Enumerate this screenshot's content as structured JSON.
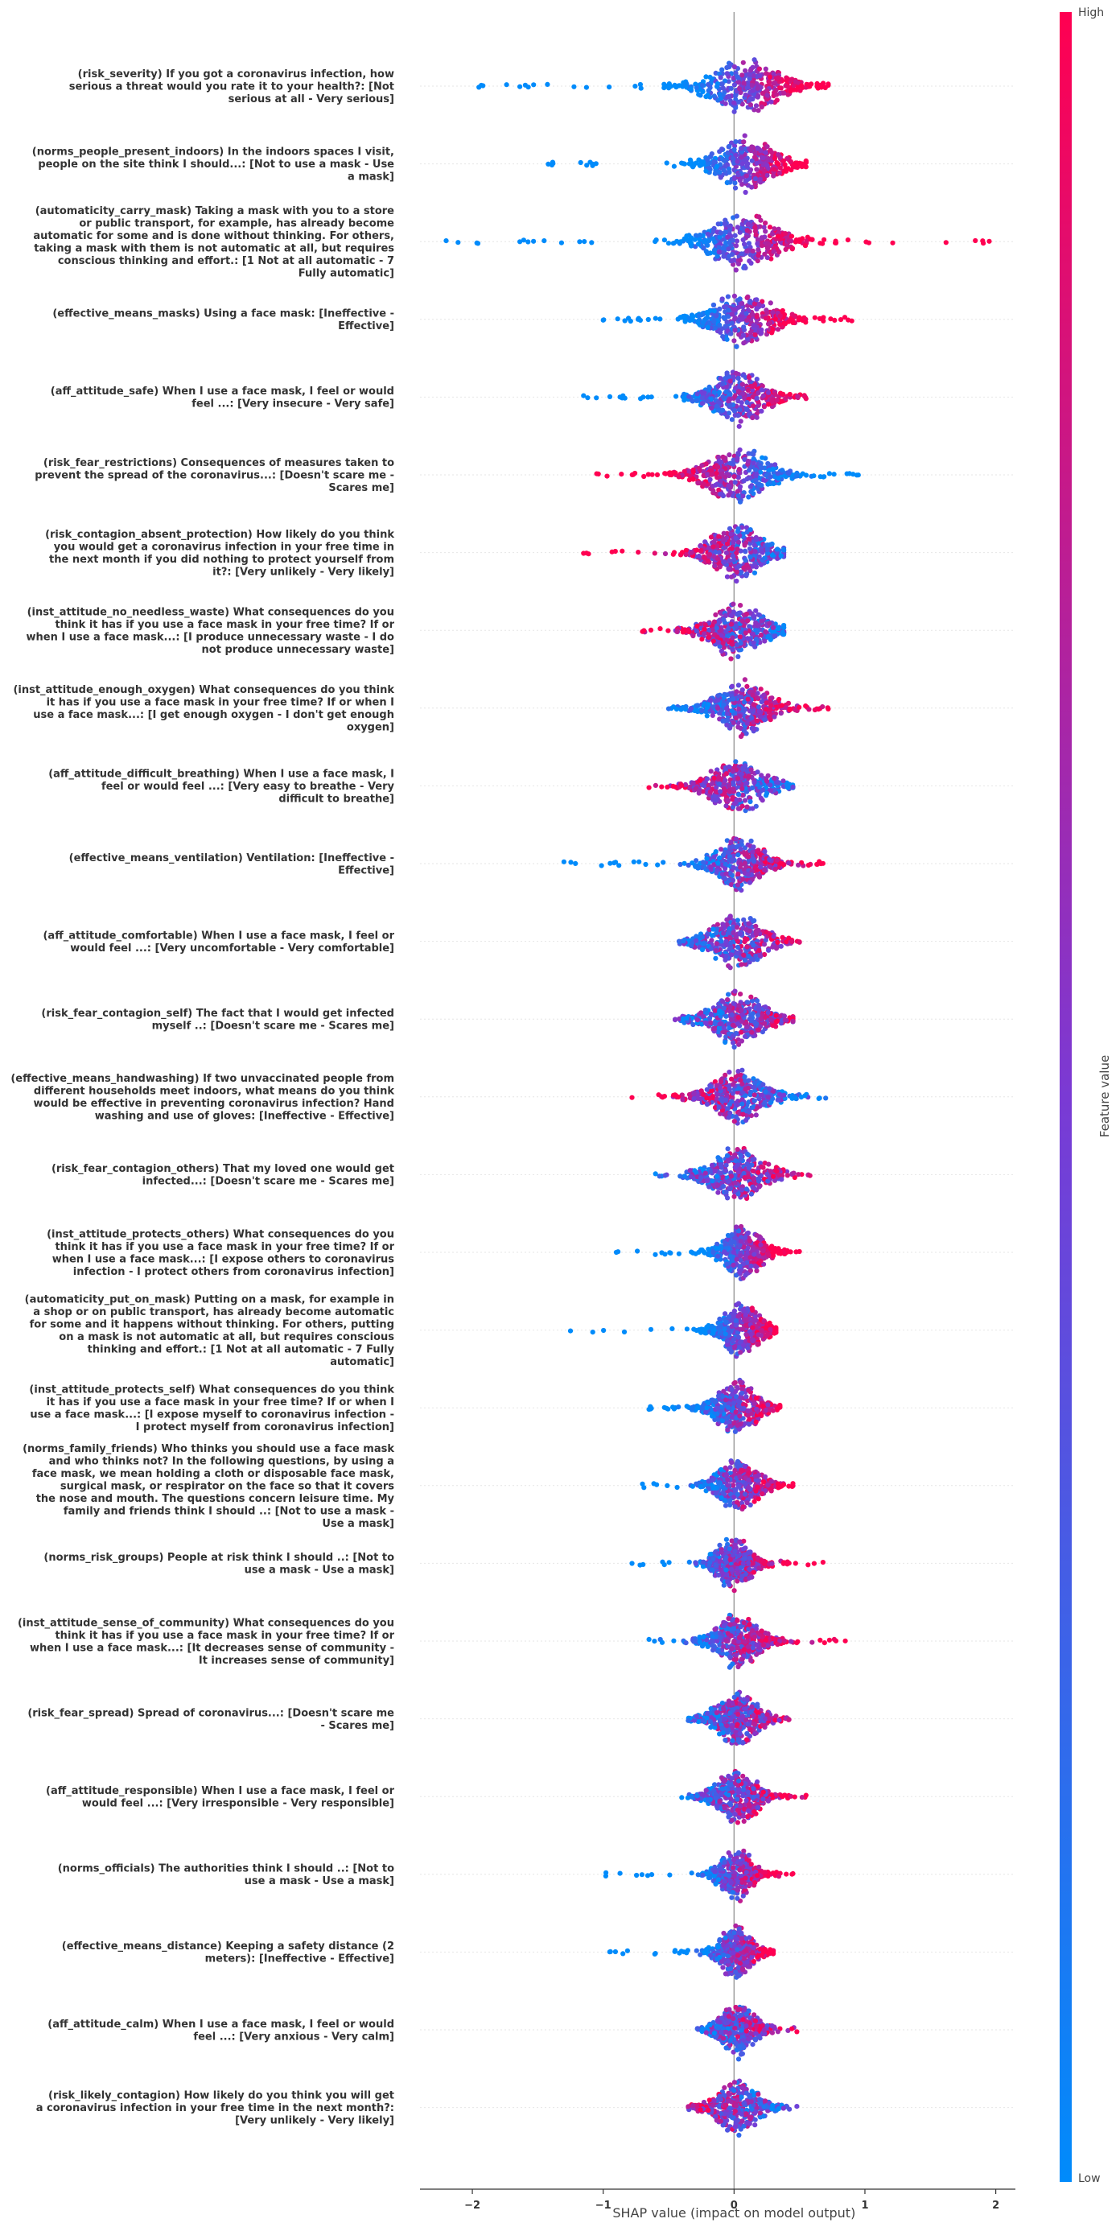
{
  "chart_data": {
    "type": "scatter",
    "subtype": "shap-beeswarm-summary",
    "xlabel": "SHAP value (impact on model output)",
    "xlim": [
      -2.4,
      2.15
    ],
    "xticks": [
      -2,
      -1,
      0,
      1,
      2
    ],
    "xtick_labels": [
      "−2",
      "−1",
      "0",
      "1",
      "2"
    ],
    "grid": false,
    "colorbar": {
      "title": "Feature value",
      "high_label": "High",
      "low_label": "Low",
      "low_color": "#008bfb",
      "high_color": "#ff0051",
      "placement": "right"
    },
    "features": [
      {
        "name": "risk_severity",
        "label_lines": [
          "(risk_severity) If you got a coronavirus infection, how",
          "serious a threat would you rate it to your health?: [Not",
          "serious at all - Very serious]"
        ],
        "range": [
          -1.95,
          0.72
        ],
        "core": [
          -0.25,
          0.35
        ],
        "shift": 0.12,
        "pos_high": true,
        "strength": 0.85
      },
      {
        "name": "norms_people_present_indoors",
        "label_lines": [
          "(norms_people_present_indoors) In the indoors spaces I visit,",
          "people on the site think I should...: [Not to use a mask - Use",
          "a mask]"
        ],
        "range": [
          -1.42,
          0.55
        ],
        "core": [
          -0.2,
          0.3
        ],
        "shift": 0.15,
        "pos_high": true,
        "strength": 0.9
      },
      {
        "name": "automaticity_carry_mask",
        "label_lines": [
          "(automaticity_carry_mask) Taking a mask with you to a store",
          "or public transport, for example, has already become",
          "automatic for some and is done without thinking. For others,",
          "taking a mask with them is not automatic at all, but requires",
          "conscious thinking and effort.: [1 Not at all automatic - 7",
          "Fully automatic]"
        ],
        "range": [
          -2.2,
          1.95
        ],
        "core": [
          -0.25,
          0.35
        ],
        "shift": 0.1,
        "pos_high": true,
        "strength": 0.8
      },
      {
        "name": "effective_means_masks",
        "label_lines": [
          "(effective_means_masks) Using a face mask: [Ineffective -",
          "Effective]"
        ],
        "range": [
          -1.0,
          0.9
        ],
        "core": [
          -0.2,
          0.3
        ],
        "shift": 0.08,
        "pos_high": true,
        "strength": 0.8
      },
      {
        "name": "aff_attitude_safe",
        "label_lines": [
          "(aff_attitude_safe) When I use a face mask, I feel or would",
          "feel ...: [Very insecure - Very safe]"
        ],
        "range": [
          -1.15,
          0.55
        ],
        "core": [
          -0.2,
          0.25
        ],
        "shift": 0.02,
        "pos_high": true,
        "strength": 0.6
      },
      {
        "name": "risk_fear_restrictions",
        "label_lines": [
          "(risk_fear_restrictions) Consequences of measures taken to",
          "prevent the spread of the coronavirus...: [Doesn't scare me -",
          "Scares me]"
        ],
        "range": [
          -1.05,
          0.95
        ],
        "core": [
          -0.25,
          0.3
        ],
        "shift": 0.0,
        "pos_high": false,
        "strength": 0.7
      },
      {
        "name": "risk_contagion_absent_protection",
        "label_lines": [
          "(risk_contagion_absent_protection) How likely do you think",
          "you would get a coronavirus infection in your free time in",
          "the next month if you did nothing to protect yourself from",
          "it?: [Very unlikely - Very likely]"
        ],
        "range": [
          -1.15,
          0.38
        ],
        "core": [
          -0.2,
          0.25
        ],
        "shift": 0.0,
        "pos_high": false,
        "strength": 0.4
      },
      {
        "name": "inst_attitude_no_needless_waste",
        "label_lines": [
          "(inst_attitude_no_needless_waste) What consequences do you",
          "think it has if you use a face mask in your free time? If or",
          "when I use a face mask...: [I produce unnecessary waste - I do",
          "not produce unnecessary waste]"
        ],
        "range": [
          -0.7,
          0.38
        ],
        "core": [
          -0.2,
          0.25
        ],
        "shift": 0.0,
        "pos_high": false,
        "strength": 0.35
      },
      {
        "name": "inst_attitude_enough_oxygen",
        "label_lines": [
          "(inst_attitude_enough_oxygen) What consequences do you think",
          "it has if you use a face mask in your free time? If or when I",
          "use a face mask...: [I get enough oxygen - I don't get enough",
          "oxygen]"
        ],
        "range": [
          -0.5,
          0.72
        ],
        "core": [
          -0.15,
          0.3
        ],
        "shift": 0.0,
        "pos_high": true,
        "strength": 0.5
      },
      {
        "name": "aff_attitude_difficult_breathing",
        "label_lines": [
          "(aff_attitude_difficult_breathing) When I use a face mask, I",
          "feel or would feel ...: [Very easy to breathe - Very",
          "difficult to breathe]"
        ],
        "range": [
          -0.65,
          0.45
        ],
        "core": [
          -0.2,
          0.25
        ],
        "shift": 0.0,
        "pos_high": false,
        "strength": 0.4
      },
      {
        "name": "effective_means_ventilation",
        "label_lines": [
          "(effective_means_ventilation) Ventilation: [Ineffective -",
          "Effective]"
        ],
        "range": [
          -1.3,
          0.68
        ],
        "core": [
          -0.15,
          0.25
        ],
        "shift": 0.0,
        "pos_high": true,
        "strength": 0.5
      },
      {
        "name": "aff_attitude_comfortable",
        "label_lines": [
          "(aff_attitude_comfortable) When I use a face mask, I feel or",
          "would feel ...: [Very uncomfortable - Very comfortable]"
        ],
        "range": [
          -0.42,
          0.5
        ],
        "core": [
          -0.2,
          0.25
        ],
        "shift": 0.0,
        "pos_high": true,
        "strength": 0.35
      },
      {
        "name": "risk_fear_contagion_self",
        "label_lines": [
          "(risk_fear_contagion_self) The fact that I would get infected",
          "myself ..: [Doesn't scare me - Scares me]"
        ],
        "range": [
          -0.45,
          0.45
        ],
        "core": [
          -0.2,
          0.25
        ],
        "shift": 0.0,
        "pos_high": true,
        "strength": 0.35
      },
      {
        "name": "effective_means_handwashing",
        "label_lines": [
          "(effective_means_handwashing) If two unvaccinated people from",
          "different households meet indoors, what means do you think",
          "would be effective in preventing coronavirus infection? Hand",
          "washing and use of gloves: [Ineffective - Effective]"
        ],
        "range": [
          -0.78,
          0.7
        ],
        "core": [
          -0.2,
          0.25
        ],
        "shift": 0.0,
        "pos_high": false,
        "strength": 0.4
      },
      {
        "name": "risk_fear_contagion_others",
        "label_lines": [
          "(risk_fear_contagion_others) That my loved one would get",
          "infected...: [Doesn't scare me - Scares me]"
        ],
        "range": [
          -0.6,
          0.58
        ],
        "core": [
          -0.2,
          0.25
        ],
        "shift": 0.0,
        "pos_high": true,
        "strength": 0.35
      },
      {
        "name": "inst_attitude_protects_others",
        "label_lines": [
          "(inst_attitude_protects_others) What consequences do you",
          "think it has if you use a face mask in your free time? If or",
          "when I use a face mask...: [I expose others to coronavirus",
          "infection - I protect others from coronavirus infection]"
        ],
        "range": [
          -0.9,
          0.5
        ],
        "core": [
          -0.12,
          0.2
        ],
        "shift": 0.08,
        "pos_high": true,
        "strength": 0.8
      },
      {
        "name": "automaticity_put_on_mask",
        "label_lines": [
          "(automaticity_put_on_mask) Putting on a mask, for example in",
          "a shop or on public transport, has already become automatic",
          "for some and it happens without thinking. For others, putting",
          "on a mask is not automatic at all, but requires conscious",
          "thinking and effort.: [1 Not at all automatic - 7 Fully",
          "automatic]"
        ],
        "range": [
          -1.25,
          0.32
        ],
        "core": [
          -0.12,
          0.2
        ],
        "shift": 0.05,
        "pos_high": true,
        "strength": 0.8
      },
      {
        "name": "inst_attitude_protects_self",
        "label_lines": [
          "(inst_attitude_protects_self) What consequences do you think",
          "it has if you use a face mask in your free time? If or when I",
          "use a face mask...: [I expose myself to coronavirus infection -",
          "I protect myself from coronavirus infection]"
        ],
        "range": [
          -0.65,
          0.35
        ],
        "core": [
          -0.15,
          0.2
        ],
        "shift": 0.0,
        "pos_high": true,
        "strength": 0.6
      },
      {
        "name": "norms_family_friends",
        "label_lines": [
          "(norms_family_friends) Who thinks you should use a face mask",
          "and who thinks not? In the following questions, by using a",
          "face mask, we mean holding a cloth or disposable face mask,",
          "surgical mask, or respirator on the face so that it covers",
          "the nose and mouth. The questions concern leisure time. My",
          "family and friends think I should ..: [Not to use a mask -",
          "Use a mask]"
        ],
        "range": [
          -0.7,
          0.45
        ],
        "core": [
          -0.15,
          0.2
        ],
        "shift": 0.0,
        "pos_high": true,
        "strength": 0.6
      },
      {
        "name": "norms_risk_groups",
        "label_lines": [
          "(norms_risk_groups) People at risk think I should ..: [Not to",
          "use a mask - Use a mask]"
        ],
        "range": [
          -0.78,
          0.68
        ],
        "core": [
          -0.15,
          0.15
        ],
        "shift": 0.0,
        "pos_high": true,
        "strength": 0.5
      },
      {
        "name": "inst_attitude_sense_of_community",
        "label_lines": [
          "(inst_attitude_sense_of_community) What consequences do you",
          "think it has if you use a face mask in your free time? If or",
          "when I use a face mask...: [It decreases sense of community -",
          "It increases sense of community]"
        ],
        "range": [
          -0.65,
          0.85
        ],
        "core": [
          -0.15,
          0.2
        ],
        "shift": 0.0,
        "pos_high": true,
        "strength": 0.4
      },
      {
        "name": "risk_fear_spread",
        "label_lines": [
          "(risk_fear_spread) Spread of coronavirus...: [Doesn't scare me",
          "- Scares me]"
        ],
        "range": [
          -0.35,
          0.42
        ],
        "core": [
          -0.15,
          0.2
        ],
        "shift": 0.0,
        "pos_high": true,
        "strength": 0.3
      },
      {
        "name": "aff_attitude_responsible",
        "label_lines": [
          "(aff_attitude_responsible) When I use a face mask, I feel or",
          "would feel ...: [Very irresponsible - Very responsible]"
        ],
        "range": [
          -0.4,
          0.55
        ],
        "core": [
          -0.15,
          0.2
        ],
        "shift": 0.0,
        "pos_high": true,
        "strength": 0.4
      },
      {
        "name": "norms_officials",
        "label_lines": [
          "(norms_officials) The authorities think I should ..: [Not to",
          "use a mask - Use a mask]"
        ],
        "range": [
          -0.98,
          0.45
        ],
        "core": [
          -0.12,
          0.15
        ],
        "shift": 0.0,
        "pos_high": true,
        "strength": 0.6
      },
      {
        "name": "effective_means_distance",
        "label_lines": [
          "(effective_means_distance) Keeping a safety distance (2",
          "meters): [Ineffective - Effective]"
        ],
        "range": [
          -0.95,
          0.3
        ],
        "core": [
          -0.12,
          0.15
        ],
        "shift": 0.0,
        "pos_high": true,
        "strength": 0.6
      },
      {
        "name": "aff_attitude_calm",
        "label_lines": [
          "(aff_attitude_calm) When I use a face mask, I feel or would",
          "feel ...: [Very anxious - Very calm]"
        ],
        "range": [
          -0.28,
          0.48
        ],
        "core": [
          -0.12,
          0.18
        ],
        "shift": 0.0,
        "pos_high": true,
        "strength": 0.3
      },
      {
        "name": "risk_likely_contagion",
        "label_lines": [
          "(risk_likely_contagion) How likely do you think you will get",
          "a coronavirus infection in your free time in the next month?:",
          "[Very unlikely - Very likely]"
        ],
        "range": [
          -0.35,
          0.48
        ],
        "core": [
          -0.15,
          0.2
        ],
        "shift": 0.0,
        "pos_high": false,
        "strength": 0.3
      }
    ]
  }
}
